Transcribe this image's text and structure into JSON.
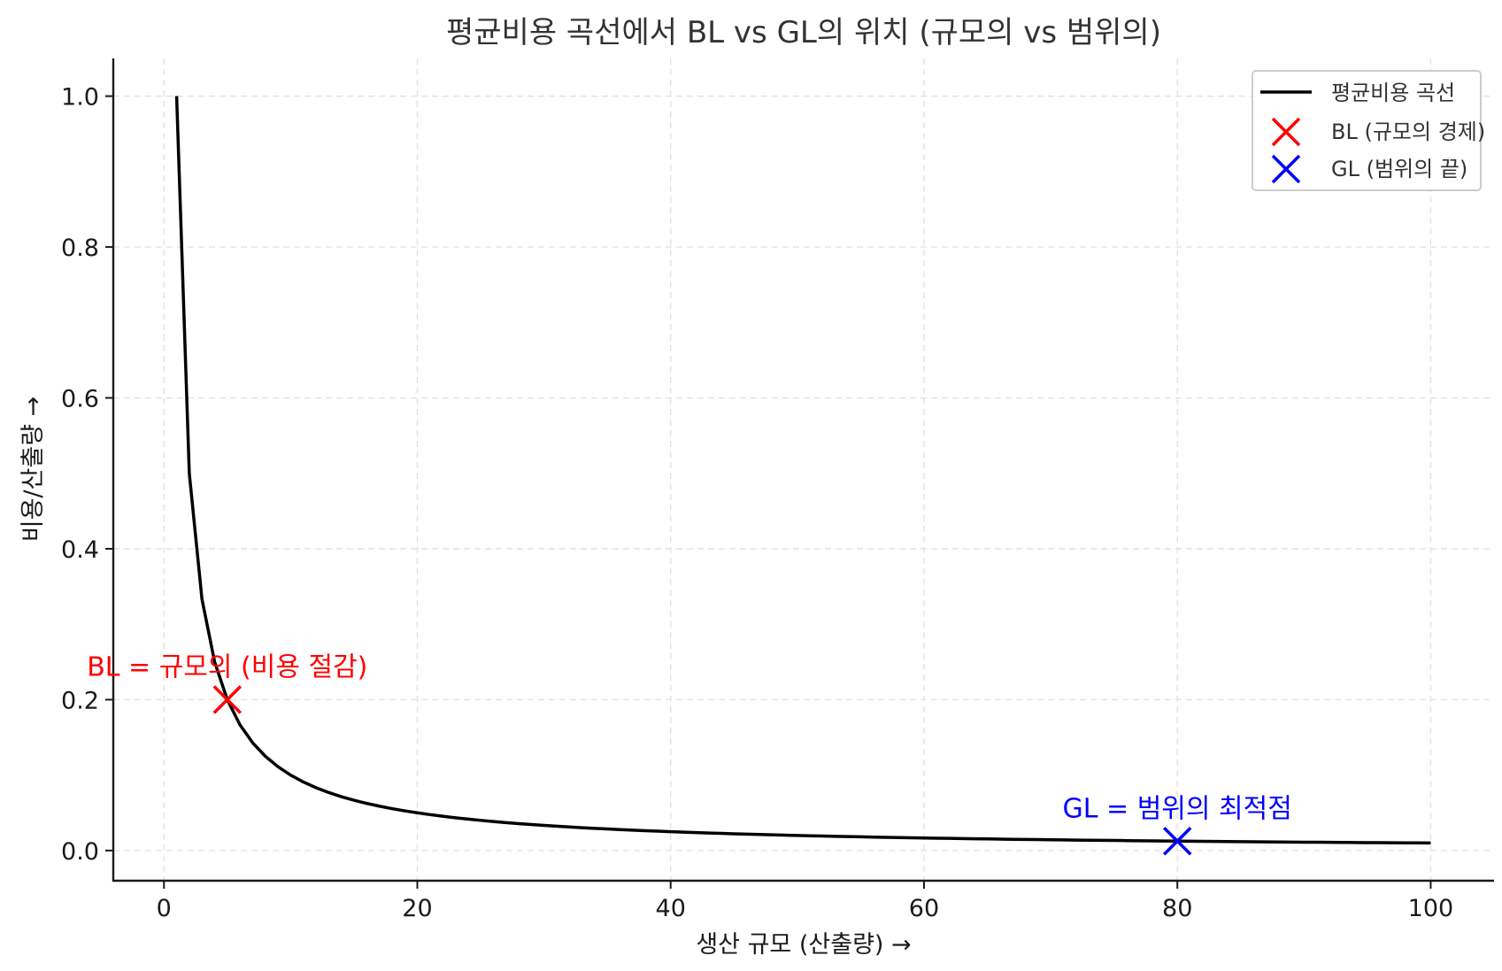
{
  "chart_data": {
    "type": "line",
    "title": "평균비용 곡선에서 BL vs GL의 위치 (규모의 vs 범위의)",
    "xlabel": "생산 규모 (산출량) →",
    "ylabel": "비용/산출량 →",
    "xlim": [
      -4,
      105
    ],
    "ylim": [
      -0.04,
      1.05
    ],
    "xticks": [
      0,
      20,
      40,
      60,
      80,
      100
    ],
    "yticks": [
      0.0,
      0.2,
      0.4,
      0.6,
      0.8,
      1.0
    ],
    "xtick_labels": [
      "0",
      "20",
      "40",
      "60",
      "80",
      "100"
    ],
    "ytick_labels": [
      "0.0",
      "0.2",
      "0.4",
      "0.6",
      "0.8",
      "1.0"
    ],
    "grid": true,
    "legend_position": "top-right",
    "series": [
      {
        "name": "평균비용 곡선",
        "type": "line",
        "color": "#000000",
        "function": "1/x",
        "x_range": [
          1,
          100
        ]
      },
      {
        "name": "BL (규모의 경제)",
        "type": "scatter",
        "marker": "x",
        "color": "#ff0000",
        "points": [
          {
            "x": 5,
            "y": 0.2
          }
        ]
      },
      {
        "name": "GL (범위의 끝)",
        "type": "scatter",
        "marker": "x",
        "color": "#0000ff",
        "points": [
          {
            "x": 80,
            "y": 0.0125
          }
        ]
      }
    ],
    "annotations": [
      {
        "text": "BL = 규모의 (비용 절감)",
        "x": 5,
        "y": 0.2,
        "color": "#ff0000"
      },
      {
        "text": "GL = 범위의 최적점",
        "x": 80,
        "y": 0.0125,
        "color": "#0000ff"
      }
    ]
  }
}
